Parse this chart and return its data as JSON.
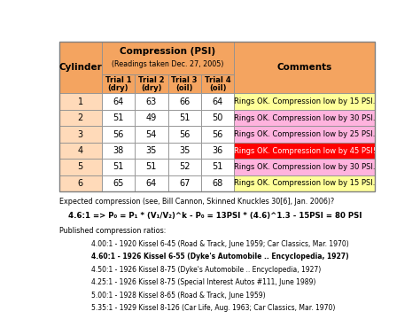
{
  "title_main": "Compression (PSI)",
  "title_sub": "(Readings taken Dec. 27, 2005)",
  "col_headers": [
    "Cylinder",
    "Trial 1\n(dry)",
    "Trial 2\n(dry)",
    "Trial 3\n(oil)",
    "Trial 4\n(oil)",
    "Comments"
  ],
  "rows": [
    [
      1,
      64,
      63,
      66,
      64,
      "Rings OK. Compression low by 15 PSI."
    ],
    [
      2,
      51,
      49,
      51,
      50,
      "Rings OK. Compression low by 30 PSI."
    ],
    [
      3,
      56,
      54,
      56,
      56,
      "Rings OK. Compression low by 25 PSI."
    ],
    [
      4,
      38,
      35,
      35,
      36,
      "Rings OK. Compression low by 45 PSI!"
    ],
    [
      5,
      51,
      51,
      52,
      51,
      "Rings OK. Compression low by 30 PSI."
    ],
    [
      6,
      65,
      64,
      67,
      68,
      "Rings OK. Compression low by 15 PSI."
    ]
  ],
  "comment_colors": [
    "#ffff99",
    "#ffb3de",
    "#ffb3de",
    "#ff0000",
    "#ffb3de",
    "#ffff99"
  ],
  "header_bg": "#f4a460",
  "data_col_bg": "#ffdab9",
  "text_below_line0": "Expected compression (see, Bill Cannon, Skinned Knuckles 30[6], Jan. 2006)?",
  "text_below_line1": "4.6:1 => P₀ = P₁ * (V₁/V₂)^k - P₀ = 13PSI * (4.6)^1.3 - 15PSI = 80 PSI",
  "text_below_line2": "Published compression ratios:",
  "compression_ratios": [
    [
      "normal",
      "4.00:1 - 1920 Kissel 6-45 (Road & Track, June 1959; Car Classics, Mar. 1970)"
    ],
    [
      "bold",
      "4.60:1 - 1926 Kissel 6-55 (Dyke's Automobile .. Encyclopedia, 1927)"
    ],
    [
      "normal",
      "4.50:1 - 1926 Kissel 8-75 (Dyke's Automobile .. Encyclopedia, 1927)"
    ],
    [
      "normal",
      "4.25:1 - 1926 Kissel 8-75 (Special Interest Autos #111, June 1989)"
    ],
    [
      "normal",
      "5.00:1 - 1928 Kissel 8-65 (Road & Track, June 1959)"
    ],
    [
      "normal",
      "5.35:1 - 1929 Kissel 8-126 (Car Life, Aug. 1963; Car Classics, Mar. 1970)"
    ]
  ]
}
